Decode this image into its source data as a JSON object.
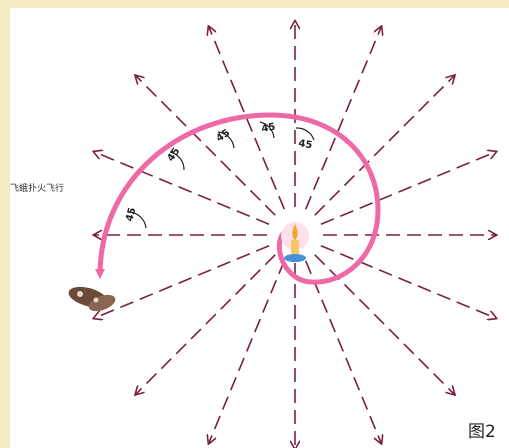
{
  "caption": "飞蛾扑火飞行",
  "figure_label": "图2",
  "angles": [
    "45",
    "45",
    "45",
    "45",
    "45"
  ]
}
